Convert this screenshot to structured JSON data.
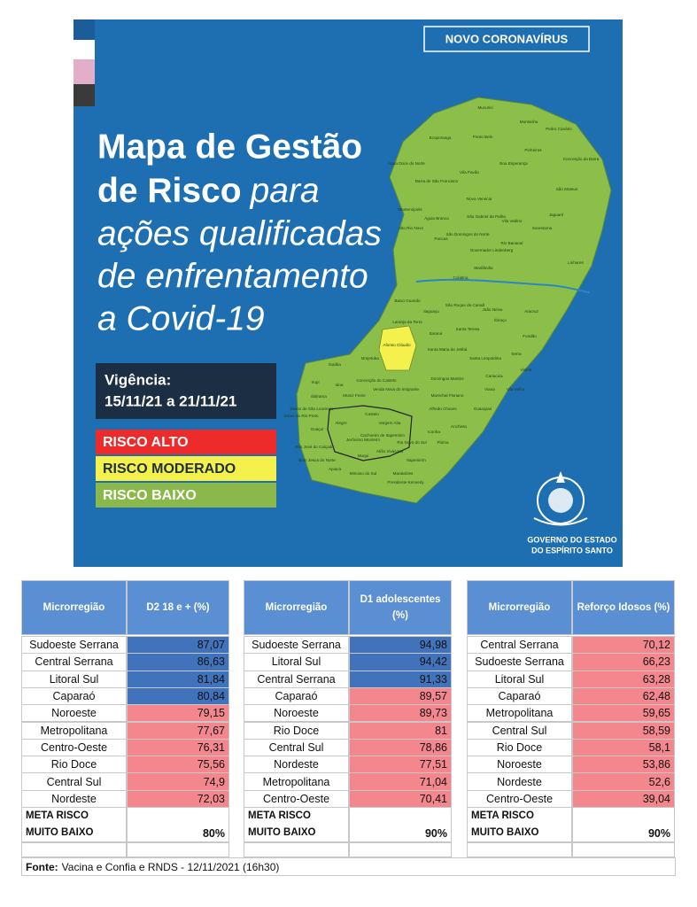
{
  "header": {
    "badge": "NOVO CORONAVÍRUS",
    "title_line1": "Mapa de Gestão",
    "title_line2_bold": "de Risco",
    "title_line2_italic": "para",
    "title_lines_italic": [
      "ações qualificadas",
      "de enfrentamento",
      "a Covid-19"
    ]
  },
  "validity": {
    "label": "Vigência:",
    "period": "15/11/21 a 21/11/21"
  },
  "legend": [
    {
      "label": "RISCO ALTO",
      "color": "#ee2b2b",
      "text_color": "#ffffff"
    },
    {
      "label": "RISCO MODERADO",
      "color": "#f4f04c",
      "text_color": "#1f2f3f"
    },
    {
      "label": "RISCO BAIXO",
      "color": "#8bb84a",
      "text_color": "#ffffff"
    }
  ],
  "map": {
    "labels": [
      "Mucurici",
      "Montanha",
      "Pedro Canário",
      "Ecoporanga",
      "Ponto Belo",
      "Pinheiros",
      "Conceição da Barra",
      "Água Doce do Norte",
      "Barra de São Francisco",
      "Vila Pavão",
      "Boa Esperança",
      "Nova Venécia",
      "São Mateus",
      "Mantenópolis",
      "Águia Branca",
      "São Gabriel da Palha",
      "Vila Valério",
      "Jaguaré",
      "Alto Rio Novo",
      "Pancas",
      "São Domingos do Norte",
      "Governador Lindenberg",
      "Sooretama",
      "Rio Bananal",
      "Linhares",
      "Marilândia",
      "Colatina",
      "Baixo Guandu",
      "Itaguaçu",
      "São Roque do Canaã",
      "João Neiva",
      "Aracruz",
      "Ibiraçu",
      "Laranja da Terra",
      "Afonso Cláudio",
      "Itarana",
      "Santa Teresa",
      "Fundão",
      "Santa Maria de Jetibá",
      "Santa Leopoldina",
      "Serra",
      "Brejetuba",
      "Ibatiba",
      "Conceição do Castelo",
      "Domingos Martins",
      "Cariacica",
      "Vitória",
      "Irupi",
      "Iúna",
      "Venda Nova do Imigrante",
      "Vila Velha",
      "Viana",
      "Muniz Freire",
      "Marechal Floriano",
      "Ibitirama",
      "Alfredo Chaves",
      "Guarapari",
      "Divino de São Lourenço",
      "Alegre",
      "Castelo",
      "Vargem Alta",
      "Cachoeiro de Itapemirim",
      "Anchieta",
      "Iconha",
      "Piúma",
      "Rio Novo do Sul",
      "Itapemirim",
      "Jerônimo Monteiro",
      "Muqui",
      "Atílio Vivácqua",
      "Marataízes",
      "Mimoso do Sul",
      "Presidente Kennedy",
      "Apiacá",
      "Bom Jesus do Norte",
      "São José do Calçado",
      "Guaçuí",
      "Dores do Rio Preto"
    ]
  },
  "government": {
    "line1": "GOVERNO DO ESTADO",
    "line2": "DO ESPÍRITO SANTO"
  },
  "tables": [
    {
      "headers": [
        "Microrregião",
        "D2 18 e + (%)"
      ],
      "rows": [
        {
          "name": "Sudoeste Serrana",
          "value": "87,07",
          "color": "#4173bd"
        },
        {
          "name": "Central Serrana",
          "value": "86,63",
          "color": "#4173bd"
        },
        {
          "name": "Litoral Sul",
          "value": "81,84",
          "color": "#4173bd"
        },
        {
          "name": "Caparaó",
          "value": "80,84",
          "color": "#4173bd"
        },
        {
          "name": "Noroeste",
          "value": "79,15",
          "color": "#f4878e"
        },
        {
          "name": "Metropolitana",
          "value": "77,67",
          "color": "#f4878e"
        },
        {
          "name": "Centro-Oeste",
          "value": "76,31",
          "color": "#f4878e"
        },
        {
          "name": "Rio Doce",
          "value": "75,56",
          "color": "#f4878e"
        },
        {
          "name": "Central Sul",
          "value": "74,9",
          "color": "#f4878e"
        },
        {
          "name": "Nordeste",
          "value": "72,03",
          "color": "#f4878e"
        }
      ],
      "goal": {
        "label": [
          "META RISCO",
          "MUITO BAIXO"
        ],
        "value": "80%"
      }
    },
    {
      "headers": [
        "Microrregião",
        "D1 adolescentes (%)"
      ],
      "rows": [
        {
          "name": "Sudoeste Serrana",
          "value": "94,98",
          "color": "#4173bd"
        },
        {
          "name": "Litoral Sul",
          "value": "94,42",
          "color": "#4173bd"
        },
        {
          "name": "Central Serrana",
          "value": "91,33",
          "color": "#4173bd"
        },
        {
          "name": "Caparaó",
          "value": "89,57",
          "color": "#f4878e"
        },
        {
          "name": "Noroeste",
          "value": "89,73",
          "color": "#f4878e"
        },
        {
          "name": "Rio Doce",
          "value": "81",
          "color": "#f4878e"
        },
        {
          "name": "Central Sul",
          "value": "78,86",
          "color": "#f4878e"
        },
        {
          "name": "Nordeste",
          "value": "77,51",
          "color": "#f4878e"
        },
        {
          "name": "Metropolitana",
          "value": "71,04",
          "color": "#f4878e"
        },
        {
          "name": "Centro-Oeste",
          "value": "70,41",
          "color": "#f4878e"
        }
      ],
      "goal": {
        "label": [
          "META RISCO",
          "MUITO BAIXO"
        ],
        "value": "90%"
      }
    },
    {
      "headers": [
        "Microrregião",
        "Reforço Idosos (%)"
      ],
      "rows": [
        {
          "name": "Central Serrana",
          "value": "70,12",
          "color": "#f4878e"
        },
        {
          "name": "Sudoeste Serrana",
          "value": "66,23",
          "color": "#f4878e"
        },
        {
          "name": "Litoral Sul",
          "value": "63,28",
          "color": "#f4878e"
        },
        {
          "name": "Caparaó",
          "value": "62,48",
          "color": "#f4878e"
        },
        {
          "name": "Metropolitana",
          "value": "59,65",
          "color": "#f4878e"
        },
        {
          "name": "Central Sul",
          "value": "58,59",
          "color": "#f4878e"
        },
        {
          "name": "Rio Doce",
          "value": "58,1",
          "color": "#f4878e"
        },
        {
          "name": "Noroeste",
          "value": "53,86",
          "color": "#f4878e"
        },
        {
          "name": "Nordeste",
          "value": "52,6",
          "color": "#f4878e"
        },
        {
          "name": "Centro-Oeste",
          "value": "39,04",
          "color": "#f4878e"
        }
      ],
      "goal": {
        "label": [
          "META RISCO",
          "MUITO BAIXO"
        ],
        "value": "90%"
      }
    }
  ],
  "source": {
    "label": "Fonte:",
    "text": "Vacina e Confia e RNDS - 12/11/2021 (16h30)"
  }
}
